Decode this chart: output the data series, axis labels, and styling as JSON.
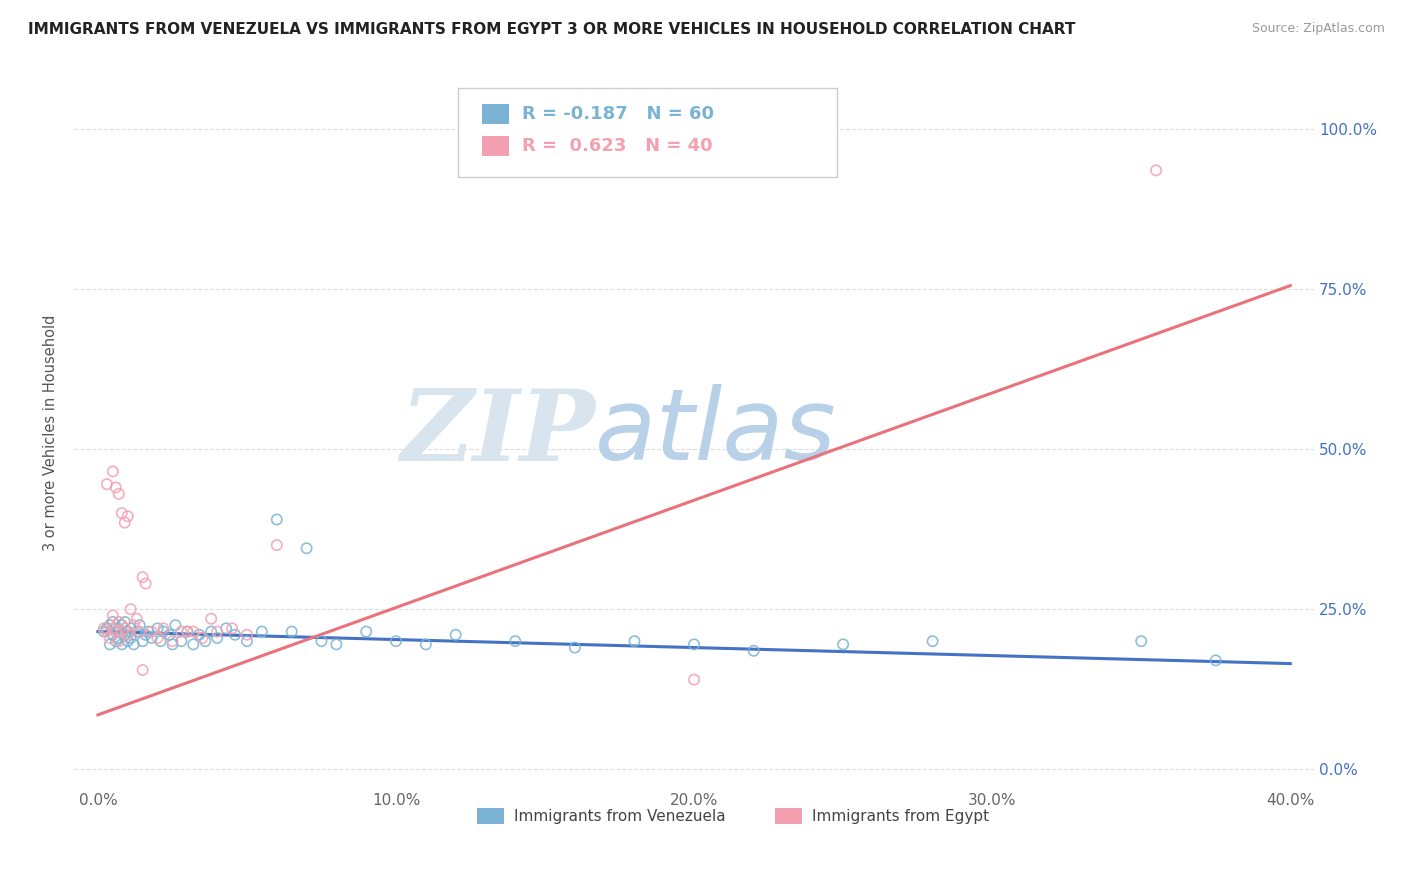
{
  "title": "IMMIGRANTS FROM VENEZUELA VS IMMIGRANTS FROM EGYPT 3 OR MORE VEHICLES IN HOUSEHOLD CORRELATION CHART",
  "source": "Source: ZipAtlas.com",
  "ylabel": "3 or more Vehicles in Household",
  "legend_label_1": "Immigrants from Venezuela",
  "legend_label_2": "Immigrants from Egypt",
  "r1": -0.187,
  "n1": 60,
  "r2": 0.623,
  "n2": 40,
  "color1": "#7ab3d4",
  "color2": "#f4a0b0",
  "line_color1": "#4472c4",
  "line_color2": "#e8737a",
  "xlim": [
    0.0,
    0.4
  ],
  "ylim": [
    -0.03,
    1.08
  ],
  "x_ticks": [
    0.0,
    0.1,
    0.2,
    0.3,
    0.4
  ],
  "x_tick_labels": [
    "0.0%",
    "10.0%",
    "20.0%",
    "30.0%",
    "40.0%"
  ],
  "y_ticks": [
    0.0,
    0.25,
    0.5,
    0.75,
    1.0
  ],
  "y_tick_labels": [
    "0.0%",
    "25.0%",
    "50.0%",
    "75.0%",
    "100.0%"
  ],
  "watermark_zip": "ZIP",
  "watermark_atlas": "atlas",
  "watermark_color_zip": "#d8e4ee",
  "watermark_color_atlas": "#b8d0e8",
  "venezuela_line_x0": 0.0,
  "venezuela_line_y0": 0.215,
  "venezuela_line_x1": 0.4,
  "venezuela_line_y1": 0.165,
  "egypt_line_x0": 0.0,
  "egypt_line_y0": 0.085,
  "egypt_line_x1": 0.4,
  "egypt_line_y1": 0.755,
  "venezuela_x": [
    0.002,
    0.003,
    0.004,
    0.004,
    0.005,
    0.005,
    0.006,
    0.006,
    0.007,
    0.007,
    0.008,
    0.008,
    0.009,
    0.009,
    0.01,
    0.01,
    0.011,
    0.011,
    0.012,
    0.013,
    0.014,
    0.015,
    0.016,
    0.017,
    0.018,
    0.02,
    0.021,
    0.022,
    0.024,
    0.025,
    0.026,
    0.028,
    0.03,
    0.032,
    0.034,
    0.036,
    0.038,
    0.04,
    0.043,
    0.046,
    0.05,
    0.055,
    0.06,
    0.065,
    0.07,
    0.075,
    0.08,
    0.09,
    0.1,
    0.11,
    0.12,
    0.14,
    0.16,
    0.18,
    0.2,
    0.22,
    0.25,
    0.28,
    0.35,
    0.375
  ],
  "venezuela_y": [
    0.215,
    0.22,
    0.195,
    0.225,
    0.21,
    0.23,
    0.2,
    0.22,
    0.215,
    0.205,
    0.225,
    0.195,
    0.21,
    0.23,
    0.2,
    0.215,
    0.22,
    0.205,
    0.195,
    0.215,
    0.225,
    0.2,
    0.21,
    0.215,
    0.205,
    0.22,
    0.2,
    0.215,
    0.21,
    0.195,
    0.225,
    0.2,
    0.215,
    0.195,
    0.21,
    0.2,
    0.215,
    0.205,
    0.22,
    0.21,
    0.2,
    0.215,
    0.39,
    0.215,
    0.345,
    0.2,
    0.195,
    0.215,
    0.2,
    0.195,
    0.21,
    0.2,
    0.19,
    0.2,
    0.195,
    0.185,
    0.195,
    0.2,
    0.2,
    0.17
  ],
  "egypt_x": [
    0.002,
    0.003,
    0.004,
    0.005,
    0.005,
    0.006,
    0.007,
    0.007,
    0.008,
    0.009,
    0.01,
    0.011,
    0.012,
    0.013,
    0.014,
    0.015,
    0.016,
    0.018,
    0.02,
    0.022,
    0.025,
    0.028,
    0.03,
    0.032,
    0.035,
    0.038,
    0.04,
    0.045,
    0.05,
    0.06,
    0.003,
    0.005,
    0.006,
    0.007,
    0.008,
    0.009,
    0.01,
    0.015,
    0.2,
    0.355
  ],
  "egypt_y": [
    0.22,
    0.215,
    0.205,
    0.22,
    0.24,
    0.215,
    0.2,
    0.23,
    0.215,
    0.22,
    0.21,
    0.25,
    0.225,
    0.235,
    0.215,
    0.3,
    0.29,
    0.215,
    0.205,
    0.22,
    0.2,
    0.215,
    0.215,
    0.215,
    0.205,
    0.235,
    0.215,
    0.22,
    0.21,
    0.35,
    0.445,
    0.465,
    0.44,
    0.43,
    0.4,
    0.385,
    0.395,
    0.155,
    0.14,
    0.935
  ]
}
